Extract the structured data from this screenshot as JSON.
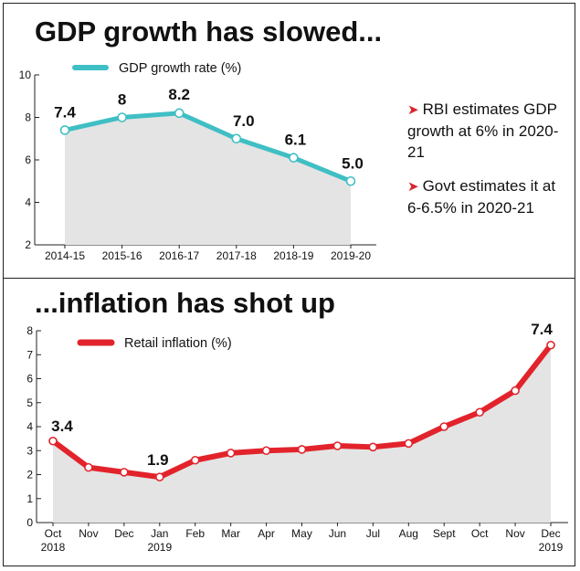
{
  "colors": {
    "gdp_line": "#3fbfc4",
    "gdp_marker_stroke": "#3fbfc4",
    "inflation_line": "#e2232b",
    "area_fill": "#e4e4e4",
    "note_arrow": "#d7262e"
  },
  "notes": [
    {
      "arrow": "➤",
      "text": "RBI estimates GDP growth at 6% in 2020-21"
    },
    {
      "arrow": "➤",
      "text": "Govt estimates it at 6-6.5% in 2020-21"
    }
  ],
  "chart_data": [
    {
      "type": "area",
      "title": "GDP growth has slowed...",
      "categories": [
        "2014-15",
        "2015-16",
        "2016-17",
        "2017-18",
        "2018-19",
        "2019-20"
      ],
      "series": [
        {
          "name": "GDP growth rate (%)",
          "values": [
            7.4,
            8,
            8.2,
            7.0,
            6.1,
            5.0
          ]
        }
      ],
      "data_labels": [
        "7.4",
        "8",
        "8.2",
        "7.0",
        "6.1",
        "5.0"
      ],
      "yticks": [
        2,
        4,
        6,
        8,
        10
      ],
      "ylim": [
        2,
        10
      ],
      "legend": "top-left",
      "grid": false
    },
    {
      "type": "area",
      "title": "...inflation has shot up",
      "categories": [
        {
          "label": "Oct",
          "sub": "2018"
        },
        {
          "label": "Nov",
          "sub": ""
        },
        {
          "label": "Dec",
          "sub": ""
        },
        {
          "label": "Jan",
          "sub": "2019"
        },
        {
          "label": "Feb",
          "sub": ""
        },
        {
          "label": "Mar",
          "sub": ""
        },
        {
          "label": "Apr",
          "sub": ""
        },
        {
          "label": "May",
          "sub": ""
        },
        {
          "label": "Jun",
          "sub": ""
        },
        {
          "label": "Jul",
          "sub": ""
        },
        {
          "label": "Aug",
          "sub": ""
        },
        {
          "label": "Sept",
          "sub": ""
        },
        {
          "label": "Oct",
          "sub": ""
        },
        {
          "label": "Nov",
          "sub": ""
        },
        {
          "label": "Dec",
          "sub": "2019"
        }
      ],
      "x_months": [
        "2018-10",
        "2018-11",
        "2018-12",
        "2019-01",
        "2019-02",
        "2019-03",
        "2019-04",
        "2019-05",
        "2019-06",
        "2019-07",
        "2019-08",
        "2019-09",
        "2019-10",
        "2019-11",
        "2019-12"
      ],
      "series": [
        {
          "name": "Retail inflation (%)",
          "values": [
            3.4,
            2.3,
            2.1,
            1.9,
            2.6,
            2.9,
            3.0,
            3.05,
            3.2,
            3.15,
            3.3,
            4.0,
            4.6,
            5.5,
            7.4
          ]
        }
      ],
      "data_labels": [
        {
          "index": 0,
          "text": "3.4"
        },
        {
          "index": 3,
          "text": "1.9"
        },
        {
          "index": 14,
          "text": "7.4"
        }
      ],
      "yticks": [
        0,
        1,
        2,
        3,
        4,
        5,
        6,
        7,
        8
      ],
      "ylim": [
        0,
        8
      ],
      "legend": "top-left",
      "grid": false
    }
  ]
}
